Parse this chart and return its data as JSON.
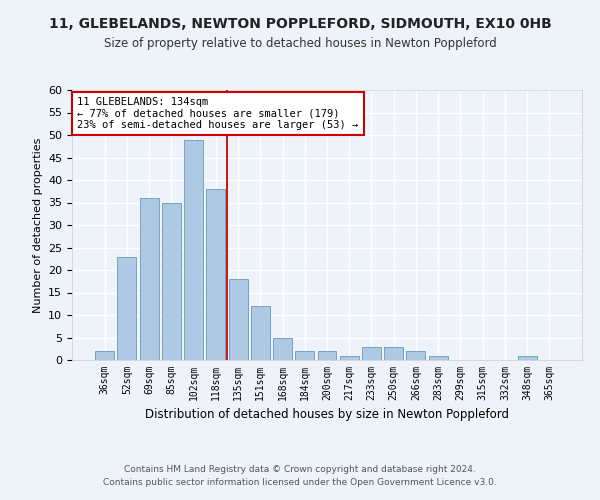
{
  "title1": "11, GLEBELANDS, NEWTON POPPLEFORD, SIDMOUTH, EX10 0HB",
  "title2": "Size of property relative to detached houses in Newton Poppleford",
  "xlabel": "Distribution of detached houses by size in Newton Poppleford",
  "ylabel": "Number of detached properties",
  "footer1": "Contains HM Land Registry data © Crown copyright and database right 2024.",
  "footer2": "Contains public sector information licensed under the Open Government Licence v3.0.",
  "categories": [
    "36sqm",
    "52sqm",
    "69sqm",
    "85sqm",
    "102sqm",
    "118sqm",
    "135sqm",
    "151sqm",
    "168sqm",
    "184sqm",
    "200sqm",
    "217sqm",
    "233sqm",
    "250sqm",
    "266sqm",
    "283sqm",
    "299sqm",
    "315sqm",
    "332sqm",
    "348sqm",
    "365sqm"
  ],
  "values": [
    2,
    23,
    36,
    35,
    49,
    38,
    18,
    12,
    5,
    2,
    2,
    1,
    3,
    3,
    2,
    1,
    0,
    0,
    0,
    1,
    0
  ],
  "bar_color": "#aec9e3",
  "bar_edge_color": "#6699bb",
  "background_color": "#eef2f9",
  "grid_color": "#ffffff",
  "vline_x": 5.5,
  "vline_color": "#cc0000",
  "annotation_text": "11 GLEBELANDS: 134sqm\n← 77% of detached houses are smaller (179)\n23% of semi-detached houses are larger (53) →",
  "annotation_box_color": "#ffffff",
  "annotation_box_edge": "#cc0000",
  "ylim": [
    0,
    60
  ],
  "yticks": [
    0,
    5,
    10,
    15,
    20,
    25,
    30,
    35,
    40,
    45,
    50,
    55,
    60
  ]
}
